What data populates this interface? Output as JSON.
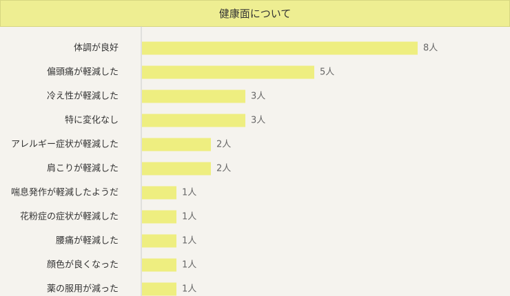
{
  "header": {
    "title": "健康面について"
  },
  "chart_data": {
    "type": "bar",
    "orientation": "horizontal",
    "title": "健康面について",
    "categories": [
      "体調が良好",
      "偏頭痛が軽減した",
      "冷え性が軽減した",
      "特に変化なし",
      "アレルギー症状が軽減した",
      "肩こりが軽減した",
      "喘息発作が軽減したようだ",
      "花粉症の症状が軽減した",
      "腰痛が軽減した",
      "顔色が良くなった",
      "薬の服用が減った"
    ],
    "values": [
      8,
      5,
      3,
      3,
      2,
      2,
      1,
      1,
      1,
      1,
      1
    ],
    "value_suffix": "人",
    "xlim": [
      0,
      10
    ],
    "bar_color": "#eeee80",
    "axis_color": "#cccccc",
    "grid": false
  }
}
